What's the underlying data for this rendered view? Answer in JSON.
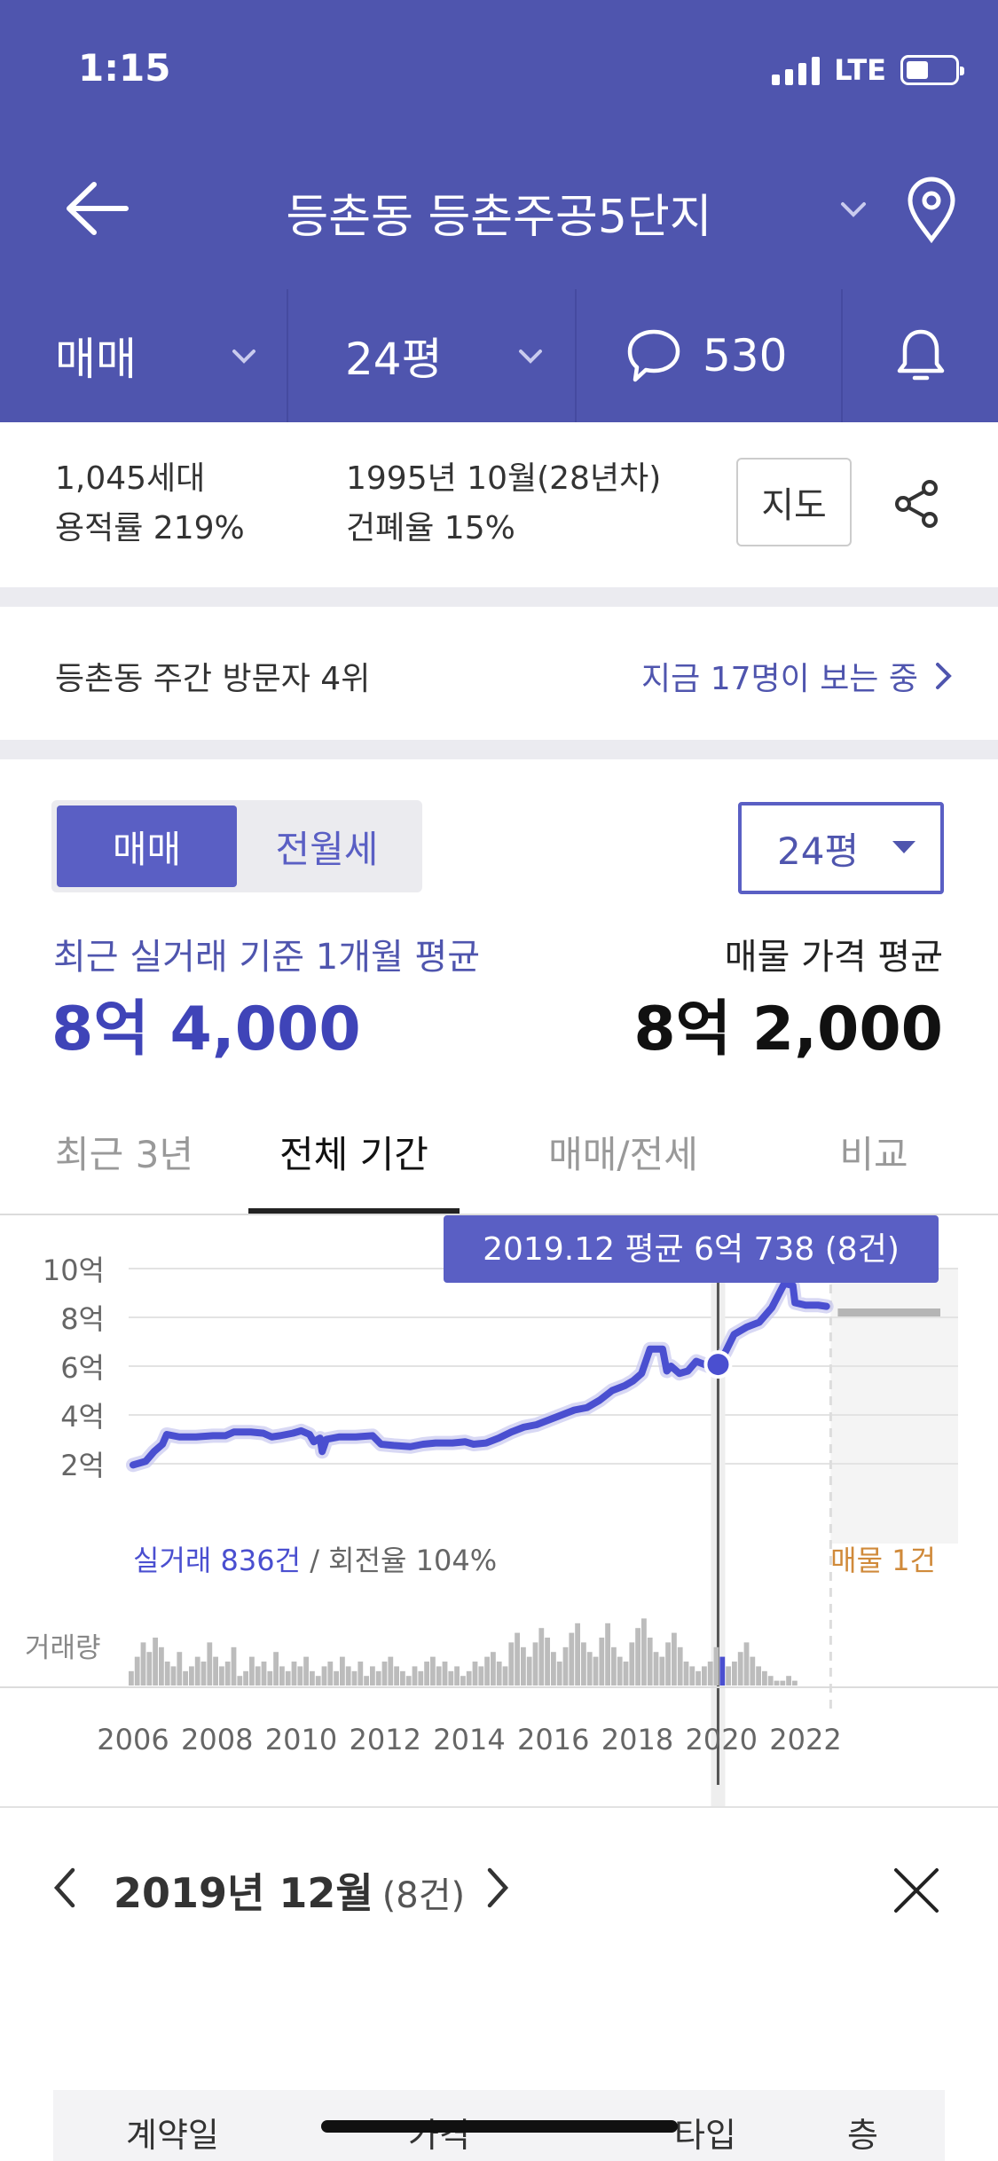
{
  "status_bar": {
    "time": "1:15",
    "network": "LTE"
  },
  "nav": {
    "title": "등촌동 등촌주공5단지"
  },
  "filters": {
    "trade_type": "매매",
    "size": "24평",
    "comment_count": "530"
  },
  "info": {
    "households": "1,045세대",
    "floor_area_ratio": "용적률 219%",
    "built": "1995년 10월(28년차)",
    "coverage_ratio": "건폐율 15%",
    "map_button": "지도"
  },
  "visitor": {
    "rank": "등촌동 주간 방문자 4위",
    "viewing_now": "지금 17명이 보는 중"
  },
  "price_section": {
    "segment": [
      "매매",
      "전월세"
    ],
    "size_select": "24평",
    "avg_label": "최근 실거래 기준 1개월 평균",
    "avg_value": "8억 4,000",
    "listing_label": "매물 가격 평균",
    "listing_value": "8억 2,000"
  },
  "tabs": [
    "최근 3년",
    "전체 기간",
    "매매/전세",
    "비교"
  ],
  "colors": {
    "header": "#4f55ae",
    "accent": "#4a4fd0",
    "listing": "#d08a3a",
    "volume": "#bcbcbc"
  },
  "chart_data": {
    "type": "line",
    "tooltip": "2019.12 평균 6억 738 (8건)",
    "y_ticks": [
      "10억",
      "8억",
      "6억",
      "4억",
      "2억"
    ],
    "x_ticks": [
      "2006",
      "2008",
      "2010",
      "2012",
      "2014",
      "2016",
      "2018",
      "2020",
      "2022"
    ],
    "ylim": [
      1.4,
      10.2
    ],
    "xlim": [
      2005.85,
      2025.25
    ],
    "y_unit": "억",
    "series": [
      {
        "values": [
          [
            2006.0,
            1.95
          ],
          [
            2006.3,
            2.1
          ],
          [
            2006.5,
            2.5
          ],
          [
            2006.7,
            2.8
          ],
          [
            2006.8,
            3.2
          ],
          [
            2007.1,
            3.1
          ],
          [
            2007.5,
            3.1
          ],
          [
            2007.9,
            3.15
          ],
          [
            2008.2,
            3.15
          ],
          [
            2008.4,
            3.3
          ],
          [
            2008.8,
            3.3
          ],
          [
            2009.1,
            3.25
          ],
          [
            2009.3,
            3.1
          ],
          [
            2009.5,
            3.15
          ],
          [
            2009.8,
            3.25
          ],
          [
            2010.0,
            3.35
          ],
          [
            2010.2,
            3.2
          ],
          [
            2010.3,
            2.9
          ],
          [
            2010.45,
            3.05
          ],
          [
            2010.5,
            2.5
          ],
          [
            2010.6,
            3.0
          ],
          [
            2010.9,
            3.1
          ],
          [
            2011.3,
            3.1
          ],
          [
            2011.7,
            3.15
          ],
          [
            2011.9,
            2.8
          ],
          [
            2012.2,
            2.75
          ],
          [
            2012.6,
            2.7
          ],
          [
            2012.9,
            2.8
          ],
          [
            2013.2,
            2.85
          ],
          [
            2013.6,
            2.85
          ],
          [
            2013.9,
            2.9
          ],
          [
            2014.1,
            2.8
          ],
          [
            2014.4,
            2.85
          ],
          [
            2014.7,
            3.05
          ],
          [
            2015.0,
            3.3
          ],
          [
            2015.3,
            3.5
          ],
          [
            2015.6,
            3.6
          ],
          [
            2015.9,
            3.8
          ],
          [
            2016.2,
            4.0
          ],
          [
            2016.5,
            4.2
          ],
          [
            2016.8,
            4.3
          ],
          [
            2017.1,
            4.6
          ],
          [
            2017.4,
            5.0
          ],
          [
            2017.7,
            5.2
          ],
          [
            2017.9,
            5.4
          ],
          [
            2018.1,
            5.7
          ],
          [
            2018.3,
            6.7
          ],
          [
            2018.6,
            6.7
          ],
          [
            2018.7,
            5.8
          ],
          [
            2018.8,
            6.0
          ],
          [
            2019.0,
            5.7
          ],
          [
            2019.2,
            5.8
          ],
          [
            2019.4,
            6.2
          ],
          [
            2019.7,
            6.0
          ],
          [
            2019.92,
            6.07
          ],
          [
            2020.1,
            6.6
          ],
          [
            2020.3,
            7.3
          ],
          [
            2020.6,
            7.6
          ],
          [
            2020.9,
            7.8
          ],
          [
            2021.2,
            8.4
          ],
          [
            2021.5,
            9.4
          ],
          [
            2021.7,
            9.3
          ],
          [
            2021.75,
            8.6
          ],
          [
            2022.0,
            8.5
          ],
          [
            2022.3,
            8.5
          ],
          [
            2022.5,
            8.45
          ]
        ]
      }
    ],
    "listing_band": {
      "from_x": 2022.6,
      "value": 8.2
    },
    "selected_x": 2019.92,
    "volume": [
      3,
      6,
      9,
      7,
      10,
      8,
      5,
      4,
      7,
      3,
      4,
      6,
      5,
      9,
      6,
      4,
      5,
      8,
      2,
      3,
      6,
      4,
      5,
      3,
      7,
      4,
      3,
      5,
      4,
      6,
      3,
      2,
      4,
      5,
      3,
      6,
      4,
      3,
      5,
      2,
      4,
      3,
      5,
      6,
      4,
      3,
      2,
      4,
      3,
      5,
      6,
      4,
      5,
      3,
      4,
      2,
      3,
      5,
      4,
      6,
      7,
      5,
      4,
      9,
      11,
      8,
      6,
      9,
      12,
      10,
      7,
      5,
      8,
      11,
      13,
      9,
      7,
      6,
      10,
      13,
      8,
      6,
      5,
      9,
      12,
      14,
      10,
      7,
      6,
      9,
      11,
      8,
      5,
      4,
      3,
      4,
      5,
      8,
      6,
      4,
      5,
      7,
      9,
      6,
      4,
      3,
      2,
      1,
      1,
      2,
      1
    ],
    "volume_label": "거래량",
    "summary_left": "실거래 836건",
    "summary_left_rest": "/ 회전율 104%",
    "summary_right": "매물 1건"
  },
  "detail": {
    "month": "2019년 12월",
    "count": "(8건)",
    "columns": [
      "계약일",
      "가격",
      "타입",
      "층"
    ]
  }
}
